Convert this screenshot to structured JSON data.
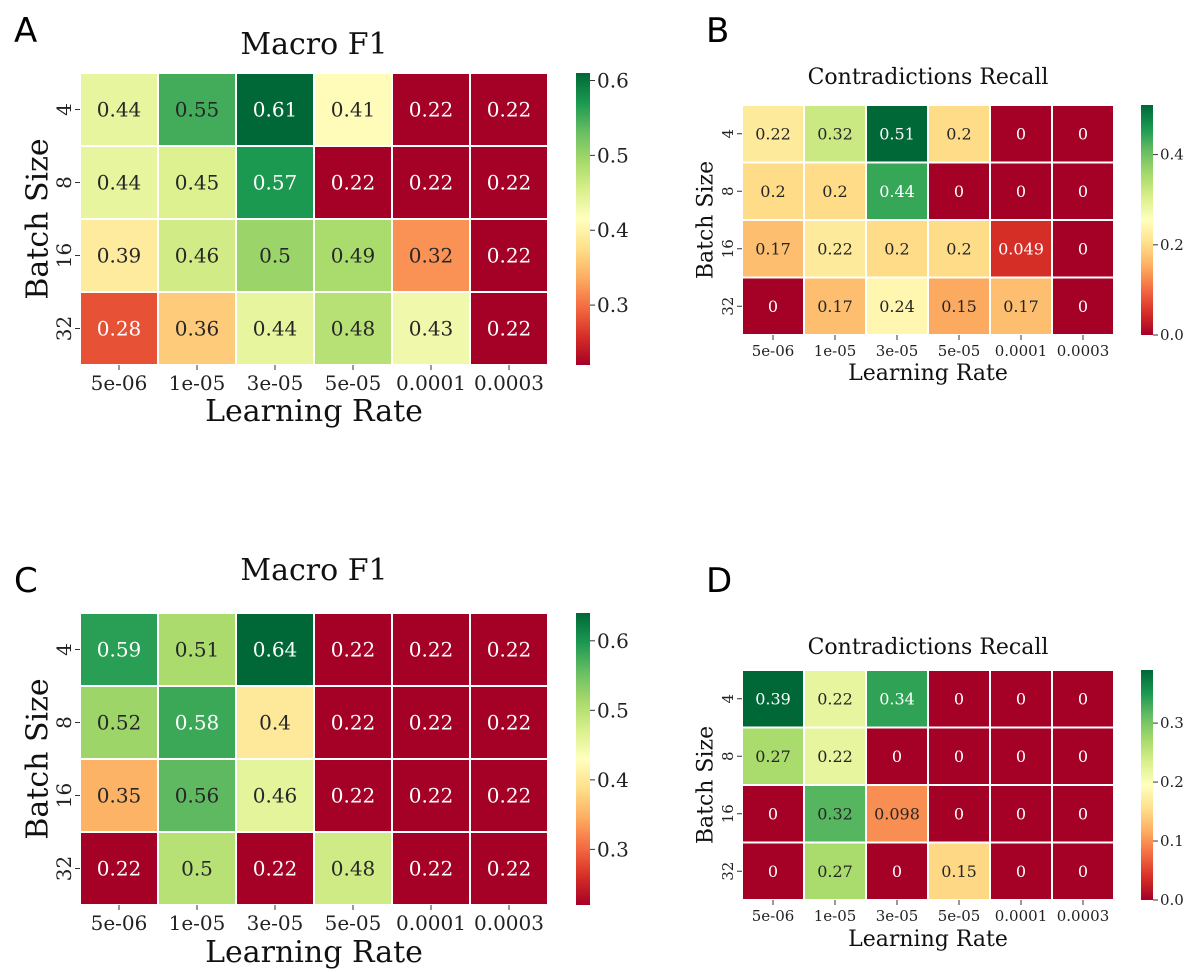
{
  "chart_data": [
    {
      "panel": "A",
      "type": "heatmap",
      "title": "Macro F1",
      "xlabel": "Learning Rate",
      "ylabel": "Batch Size",
      "x_categories": [
        "5e-06",
        "1e-05",
        "3e-05",
        "5e-05",
        "0.0001",
        "0.0003"
      ],
      "y_categories": [
        "4",
        "8",
        "16",
        "32"
      ],
      "values": [
        [
          0.44,
          0.55,
          0.61,
          0.41,
          0.22,
          0.22
        ],
        [
          0.44,
          0.45,
          0.57,
          0.22,
          0.22,
          0.22
        ],
        [
          0.39,
          0.46,
          0.5,
          0.49,
          0.32,
          0.22
        ],
        [
          0.28,
          0.36,
          0.44,
          0.48,
          0.43,
          0.22
        ]
      ],
      "labels": [
        [
          "0.44",
          "0.55",
          "0.61",
          "0.41",
          "0.22",
          "0.22"
        ],
        [
          "0.44",
          "0.45",
          "0.57",
          "0.22",
          "0.22",
          "0.22"
        ],
        [
          "0.39",
          "0.46",
          "0.5",
          "0.49",
          "0.32",
          "0.22"
        ],
        [
          "0.28",
          "0.36",
          "0.44",
          "0.48",
          "0.43",
          "0.22"
        ]
      ],
      "vmin": 0.22,
      "vmax": 0.61,
      "colorbar_ticks": [
        0.3,
        0.4,
        0.5,
        0.6
      ],
      "colorbar_tick_labels": [
        "0.3",
        "0.4",
        "0.5",
        "0.6"
      ],
      "colormap": "RdYlGn"
    },
    {
      "panel": "B",
      "type": "heatmap",
      "title": "Contradictions Recall",
      "xlabel": "Learning Rate",
      "ylabel": "Batch Size",
      "x_categories": [
        "5e-06",
        "1e-05",
        "3e-05",
        "5e-05",
        "0.0001",
        "0.0003"
      ],
      "y_categories": [
        "4",
        "8",
        "16",
        "32"
      ],
      "values": [
        [
          0.22,
          0.32,
          0.51,
          0.2,
          0,
          0
        ],
        [
          0.2,
          0.2,
          0.44,
          0,
          0,
          0
        ],
        [
          0.17,
          0.22,
          0.2,
          0.2,
          0.049,
          0
        ],
        [
          0,
          0.17,
          0.24,
          0.15,
          0.17,
          0
        ]
      ],
      "labels": [
        [
          "0.22",
          "0.32",
          "0.51",
          "0.2",
          "0",
          "0"
        ],
        [
          "0.2",
          "0.2",
          "0.44",
          "0",
          "0",
          "0"
        ],
        [
          "0.17",
          "0.22",
          "0.2",
          "0.2",
          "0.049",
          "0"
        ],
        [
          "0",
          "0.17",
          "0.24",
          "0.15",
          "0.17",
          "0"
        ]
      ],
      "vmin": 0,
      "vmax": 0.51,
      "colorbar_ticks": [
        0.0,
        0.2,
        0.4
      ],
      "colorbar_tick_labels": [
        "0.0",
        "0.2",
        "0.4"
      ],
      "colormap": "RdYlGn"
    },
    {
      "panel": "C",
      "type": "heatmap",
      "title": "Macro F1",
      "xlabel": "Learning Rate",
      "ylabel": "Batch Size",
      "x_categories": [
        "5e-06",
        "1e-05",
        "3e-05",
        "5e-05",
        "0.0001",
        "0.0003"
      ],
      "y_categories": [
        "4",
        "8",
        "16",
        "32"
      ],
      "values": [
        [
          0.59,
          0.51,
          0.64,
          0.22,
          0.22,
          0.22
        ],
        [
          0.52,
          0.58,
          0.4,
          0.22,
          0.22,
          0.22
        ],
        [
          0.35,
          0.56,
          0.46,
          0.22,
          0.22,
          0.22
        ],
        [
          0.22,
          0.5,
          0.22,
          0.48,
          0.22,
          0.22
        ]
      ],
      "labels": [
        [
          "0.59",
          "0.51",
          "0.64",
          "0.22",
          "0.22",
          "0.22"
        ],
        [
          "0.52",
          "0.58",
          "0.4",
          "0.22",
          "0.22",
          "0.22"
        ],
        [
          "0.35",
          "0.56",
          "0.46",
          "0.22",
          "0.22",
          "0.22"
        ],
        [
          "0.22",
          "0.5",
          "0.22",
          "0.48",
          "0.22",
          "0.22"
        ]
      ],
      "vmin": 0.22,
      "vmax": 0.64,
      "colorbar_ticks": [
        0.3,
        0.4,
        0.5,
        0.6
      ],
      "colorbar_tick_labels": [
        "0.3",
        "0.4",
        "0.5",
        "0.6"
      ],
      "colormap": "RdYlGn"
    },
    {
      "panel": "D",
      "type": "heatmap",
      "title": "Contradictions Recall",
      "xlabel": "Learning Rate",
      "ylabel": "Batch Size",
      "x_categories": [
        "5e-06",
        "1e-05",
        "3e-05",
        "5e-05",
        "0.0001",
        "0.0003"
      ],
      "y_categories": [
        "4",
        "8",
        "16",
        "32"
      ],
      "values": [
        [
          0.39,
          0.22,
          0.34,
          0,
          0,
          0
        ],
        [
          0.27,
          0.22,
          0,
          0,
          0,
          0
        ],
        [
          0,
          0.32,
          0.098,
          0,
          0,
          0
        ],
        [
          0,
          0.27,
          0,
          0.15,
          0,
          0
        ]
      ],
      "labels": [
        [
          "0.39",
          "0.22",
          "0.34",
          "0",
          "0",
          "0"
        ],
        [
          "0.27",
          "0.22",
          "0",
          "0",
          "0",
          "0"
        ],
        [
          "0",
          "0.32",
          "0.098",
          "0",
          "0",
          "0"
        ],
        [
          "0",
          "0.27",
          "0",
          "0.15",
          "0",
          "0"
        ]
      ],
      "vmin": 0,
      "vmax": 0.39,
      "colorbar_ticks": [
        0.0,
        0.1,
        0.2,
        0.3
      ],
      "colorbar_tick_labels": [
        "0.0",
        "0.1",
        "0.2",
        "0.3"
      ],
      "colormap": "RdYlGn"
    }
  ]
}
